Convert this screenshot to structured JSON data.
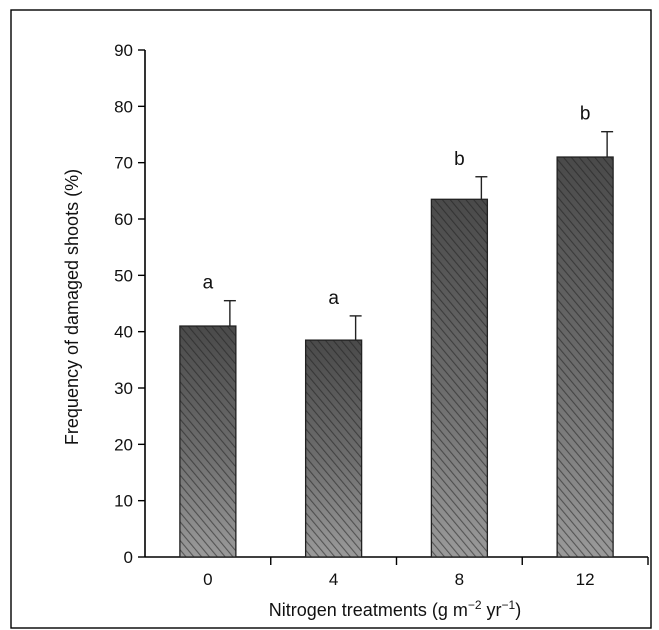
{
  "chart_data": {
    "type": "bar",
    "categories": [
      "0",
      "4",
      "8",
      "12"
    ],
    "values": [
      41,
      38.5,
      63.5,
      71
    ],
    "error_plus": [
      4.5,
      4.3,
      4,
      4.5
    ],
    "significance_letters": [
      "a",
      "a",
      "b",
      "b"
    ],
    "title": "",
    "xlabel_main": "Nitrogen treatments (g m",
    "xlabel_exp1": "−2",
    "xlabel_mid": " yr",
    "xlabel_exp2": "−1",
    "xlabel_end": ")",
    "ylabel": "Frequency of damaged shoots (%)",
    "ylim": [
      0,
      90
    ],
    "yticks": [
      "0",
      "10",
      "20",
      "30",
      "40",
      "50",
      "60",
      "70",
      "80",
      "90"
    ],
    "grid": false,
    "bar_colors": {
      "light": "#8c8c8c",
      "dark": "#555555",
      "stripe": "#2a2a2a"
    }
  }
}
